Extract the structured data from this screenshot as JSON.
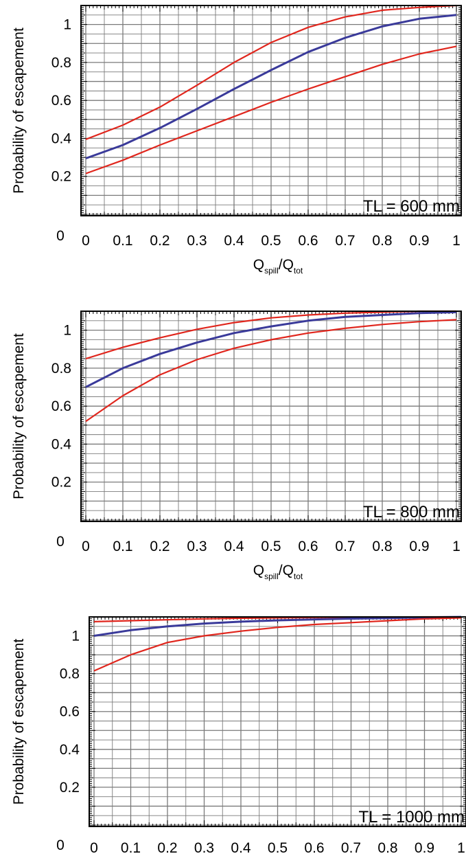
{
  "colors": {
    "center": "#3a3a9a",
    "bounds": "#e0261d",
    "grid": "#7a7a7a",
    "frame": "#000000"
  },
  "chart_data": [
    {
      "type": "line",
      "annotation": "TL = 600 mm",
      "ylabel": "Probability of escapement",
      "xlabel_main": "Q",
      "xlabel_sub1": "spill",
      "xlabel_sep": "/Q",
      "xlabel_sub2": "tot",
      "xlim": [
        0,
        1
      ],
      "ylim": [
        0,
        1.1
      ],
      "xticks": [
        "0",
        "0.1",
        "0.2",
        "0.3",
        "0.4",
        "0.5",
        "0.6",
        "0.7",
        "0.8",
        "0.9",
        "1"
      ],
      "yticks": [
        0.2,
        0.4,
        0.6,
        0.8,
        1
      ],
      "ytick_labels": [
        "0.2",
        "0.4",
        "0.6",
        "0.8",
        "1"
      ],
      "yzero_label": "0",
      "x": [
        0,
        0.1,
        0.2,
        0.3,
        0.4,
        0.5,
        0.6,
        0.7,
        0.8,
        0.9,
        1
      ],
      "series": [
        {
          "role": "upper",
          "values": [
            0.395,
            0.47,
            0.565,
            0.68,
            0.8,
            0.905,
            0.985,
            1.04,
            1.075,
            1.09,
            1.1
          ]
        },
        {
          "role": "center",
          "values": [
            0.295,
            0.365,
            0.455,
            0.555,
            0.66,
            0.76,
            0.855,
            0.93,
            0.99,
            1.03,
            1.05
          ]
        },
        {
          "role": "lower",
          "values": [
            0.215,
            0.285,
            0.365,
            0.44,
            0.515,
            0.59,
            0.66,
            0.725,
            0.79,
            0.845,
            0.885
          ]
        }
      ]
    },
    {
      "type": "line",
      "annotation": "TL = 800 mm",
      "ylabel": "Probability of escapement",
      "xlabel_main": "Q",
      "xlabel_sub1": "spill",
      "xlabel_sep": "/Q",
      "xlabel_sub2": "tot",
      "xlim": [
        0,
        1
      ],
      "ylim": [
        0,
        1.1
      ],
      "xticks": [
        "0",
        "0.1",
        "0.2",
        "0.3",
        "0.4",
        "0.5",
        "0.6",
        "0.7",
        "0.8",
        "0.9",
        "1"
      ],
      "yticks": [
        0.2,
        0.4,
        0.6,
        0.8,
        1
      ],
      "ytick_labels": [
        "0.2",
        "0.4",
        "0.6",
        "0.8",
        "1"
      ],
      "yzero_label": "0",
      "x": [
        0,
        0.1,
        0.2,
        0.3,
        0.4,
        0.5,
        0.6,
        0.7,
        0.8,
        0.9,
        1
      ],
      "series": [
        {
          "role": "upper",
          "values": [
            0.85,
            0.91,
            0.96,
            1.005,
            1.04,
            1.065,
            1.08,
            1.09,
            1.095,
            1.1,
            1.1
          ]
        },
        {
          "role": "center",
          "values": [
            0.7,
            0.8,
            0.875,
            0.935,
            0.985,
            1.02,
            1.05,
            1.07,
            1.08,
            1.09,
            1.095
          ]
        },
        {
          "role": "lower",
          "values": [
            0.52,
            0.655,
            0.765,
            0.845,
            0.905,
            0.95,
            0.985,
            1.01,
            1.03,
            1.045,
            1.055
          ]
        }
      ]
    },
    {
      "type": "line",
      "annotation": "TL = 1000 mm",
      "ylabel": "Probability of escapement",
      "xlim": [
        0,
        1
      ],
      "ylim": [
        0,
        1.1
      ],
      "xticks": [
        "0",
        "0.1",
        "0.2",
        "0.3",
        "0.4",
        "0.5",
        "0.6",
        "0.7",
        "0.8",
        "0.9",
        "1"
      ],
      "yticks": [
        0.2,
        0.4,
        0.6,
        0.8,
        1
      ],
      "ytick_labels": [
        "0.2",
        "0.4",
        "0.6",
        "0.8",
        "1"
      ],
      "yzero_label": "0",
      "x": [
        0,
        0.1,
        0.2,
        0.3,
        0.4,
        0.5,
        0.6,
        0.7,
        0.8,
        0.9,
        1
      ],
      "series": [
        {
          "role": "upper",
          "values": [
            1.075,
            1.08,
            1.085,
            1.09,
            1.093,
            1.095,
            1.097,
            1.098,
            1.099,
            1.1,
            1.1
          ]
        },
        {
          "role": "center",
          "values": [
            1.0,
            1.03,
            1.05,
            1.065,
            1.075,
            1.082,
            1.087,
            1.091,
            1.094,
            1.097,
            1.1
          ]
        },
        {
          "role": "lower",
          "values": [
            0.815,
            0.9,
            0.965,
            1.0,
            1.025,
            1.045,
            1.06,
            1.07,
            1.08,
            1.09,
            1.095
          ]
        }
      ]
    }
  ]
}
